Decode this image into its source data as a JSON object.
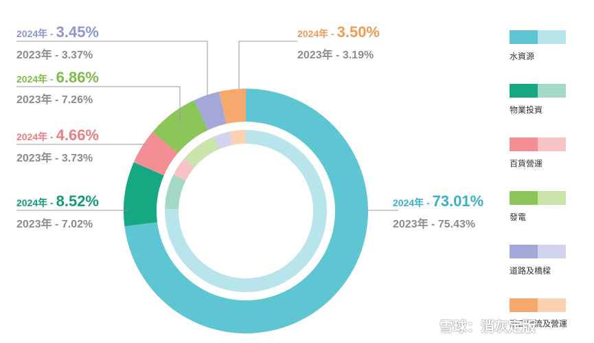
{
  "chart_data": {
    "type": "pie",
    "variant": "double-donut",
    "year_outer": "2024年",
    "year_inner": "2023年",
    "series": [
      {
        "name": "2024年",
        "values": [
          73.01,
          8.52,
          4.66,
          6.86,
          3.45,
          3.5
        ]
      },
      {
        "name": "2023年",
        "values": [
          75.43,
          7.02,
          3.73,
          7.26,
          3.37,
          3.19
        ]
      }
    ],
    "categories": [
      "水資源",
      "物業投資",
      "百貨營運",
      "發電",
      "道路及橋樑",
      "港口物流及營運"
    ],
    "labels_2024": [
      "73.01%",
      "8.52%",
      "4.66%",
      "6.86%",
      "3.45%",
      "3.50%"
    ],
    "labels_2023": [
      "75.43%",
      "7.02%",
      "3.73%",
      "7.26%",
      "3.37%",
      "3.19%"
    ],
    "colors": [
      "#5ec5d2",
      "#17a883",
      "#f28e94",
      "#8cc65a",
      "#a3a8d9",
      "#f7a86d"
    ],
    "colors_inner": [
      "#b8e4eb",
      "#a3d9c4",
      "#f8c3c5",
      "#c9e5ac",
      "#d2d4ee",
      "#fbd3b3"
    ],
    "label_colors": [
      "#3bb0c5",
      "#139a79",
      "#ea7e86",
      "#7dbb48",
      "#8f95cf",
      "#f19a55"
    ],
    "legend_placement": "right"
  },
  "legend": {
    "items": [
      "水資源",
      "物業投資",
      "百貨營運",
      "發電",
      "道路及橋樑",
      "港口物流及營運"
    ]
  },
  "watermark": "雪球：消灰定版"
}
